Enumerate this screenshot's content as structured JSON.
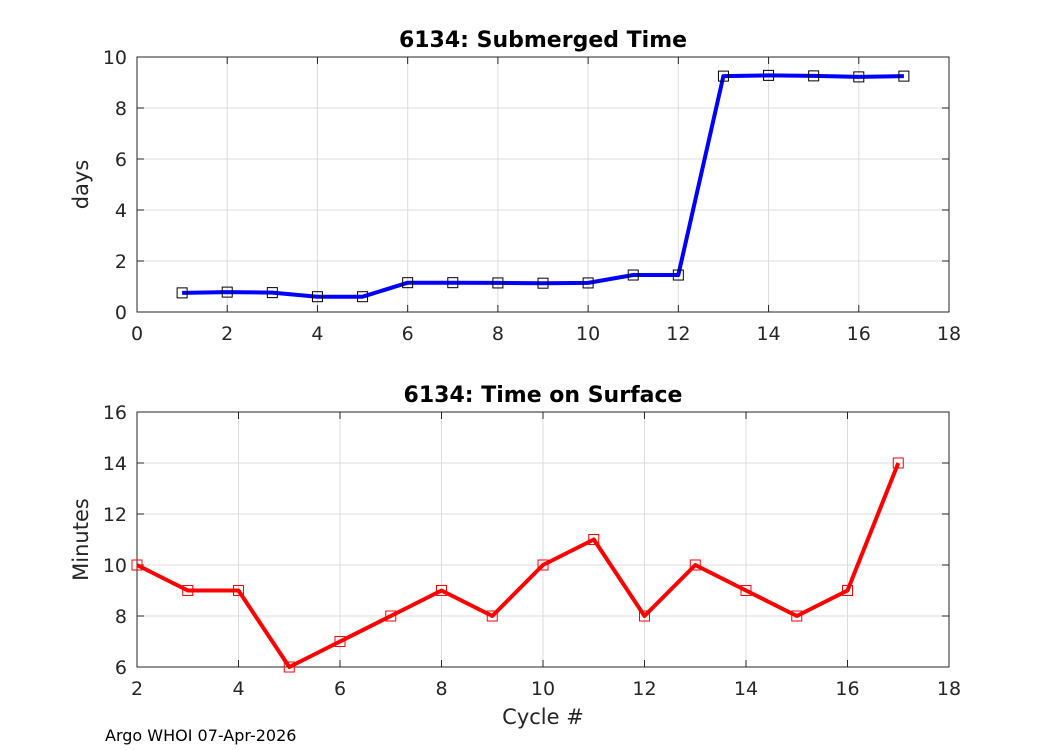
{
  "footer": "Argo WHOI 07-Apr-2026",
  "chart_data": [
    {
      "type": "line",
      "title": "6134: Submerged Time",
      "xlabel": "",
      "ylabel": "days",
      "xlim": [
        0,
        18
      ],
      "ylim": [
        0,
        10
      ],
      "xticks": [
        0,
        2,
        4,
        6,
        8,
        10,
        12,
        14,
        16,
        18
      ],
      "yticks": [
        0,
        2,
        4,
        6,
        8,
        10
      ],
      "grid": true,
      "color": "#0000ff",
      "marker": "square",
      "series": [
        {
          "name": "Submerged Time",
          "x": [
            1,
            2,
            3,
            4,
            5,
            6,
            7,
            8,
            9,
            10,
            11,
            12,
            13,
            14,
            15,
            16,
            17
          ],
          "y": [
            0.75,
            0.78,
            0.76,
            0.6,
            0.6,
            1.15,
            1.15,
            1.14,
            1.13,
            1.14,
            1.45,
            1.45,
            9.25,
            9.28,
            9.26,
            9.22,
            9.25
          ]
        }
      ]
    },
    {
      "type": "line",
      "title": "6134: Time on Surface",
      "xlabel": "Cycle #",
      "ylabel": "Minutes",
      "xlim": [
        2,
        18
      ],
      "ylim": [
        6,
        16
      ],
      "xticks": [
        2,
        4,
        6,
        8,
        10,
        12,
        14,
        16,
        18
      ],
      "yticks": [
        6,
        8,
        10,
        12,
        14,
        16
      ],
      "grid": true,
      "color": "#ff0000",
      "marker": "square",
      "series": [
        {
          "name": "Time on Surface",
          "x": [
            2,
            3,
            4,
            5,
            6,
            7,
            8,
            9,
            10,
            11,
            12,
            13,
            14,
            15,
            16,
            17
          ],
          "y": [
            10,
            9,
            9,
            6,
            7,
            8,
            9,
            8,
            10,
            11,
            8,
            10,
            9,
            8,
            9,
            14
          ]
        }
      ]
    }
  ]
}
